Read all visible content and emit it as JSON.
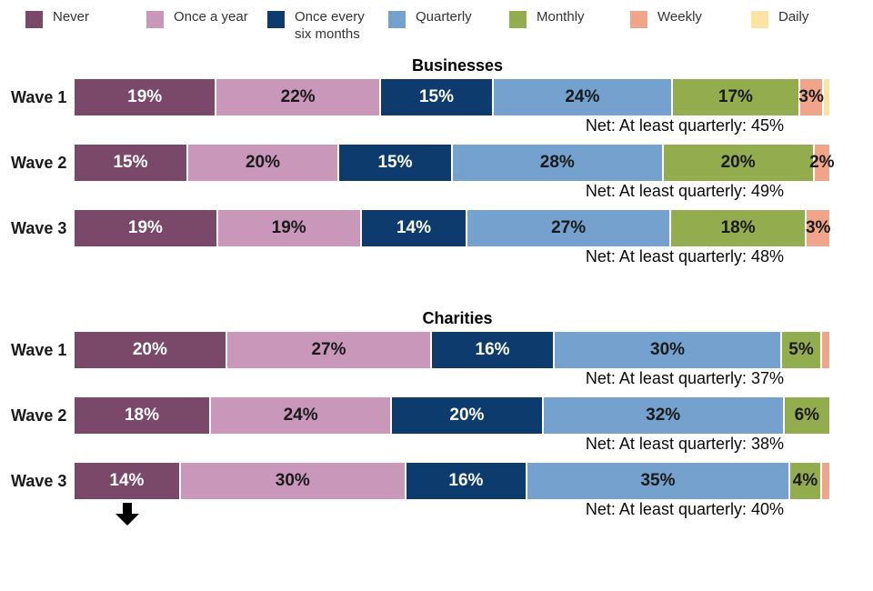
{
  "legend": {
    "items": [
      {
        "label": "Never",
        "color": "#7A4868",
        "text_color": "#ffffff"
      },
      {
        "label": "Once a year",
        "color": "#C997BA",
        "text_color": "#1a1a1a"
      },
      {
        "label": "Once every six months",
        "color": "#0E3B6E",
        "text_color": "#ffffff"
      },
      {
        "label": "Quarterly",
        "color": "#74A1CE",
        "text_color": "#1a1a1a"
      },
      {
        "label": "Monthly",
        "color": "#93AC4E",
        "text_color": "#1a1a1a"
      },
      {
        "label": "Weekly",
        "color": "#F0A489",
        "text_color": "#1a1a1a"
      },
      {
        "label": "Daily",
        "color": "#FBE3A3",
        "text_color": "#1a1a1a"
      }
    ]
  },
  "chart_data": [
    {
      "type": "bar",
      "stacked": true,
      "orientation": "horizontal",
      "unit": "%",
      "title": "Businesses",
      "categories": [
        "Wave 1",
        "Wave 2",
        "Wave 3"
      ],
      "rows": [
        {
          "category": "Wave 1",
          "segments": [
            {
              "series": "Never",
              "value": 19,
              "label": "19%"
            },
            {
              "series": "Once a year",
              "value": 22,
              "label": "22%"
            },
            {
              "series": "Once every six months",
              "value": 15,
              "label": "15%"
            },
            {
              "series": "Quarterly",
              "value": 24,
              "label": "24%"
            },
            {
              "series": "Monthly",
              "value": 17,
              "label": "17%"
            },
            {
              "series": "Weekly",
              "value": 3,
              "label": "3%"
            },
            {
              "series": "Daily",
              "value": 0.7,
              "label": ""
            }
          ],
          "net": "Net: At least quarterly: 45%"
        },
        {
          "category": "Wave 2",
          "segments": [
            {
              "series": "Never",
              "value": 15,
              "label": "15%"
            },
            {
              "series": "Once a year",
              "value": 20,
              "label": "20%"
            },
            {
              "series": "Once every six months",
              "value": 15,
              "label": "15%"
            },
            {
              "series": "Quarterly",
              "value": 28,
              "label": "28%"
            },
            {
              "series": "Monthly",
              "value": 20,
              "label": "20%"
            },
            {
              "series": "Weekly",
              "value": 2,
              "label": "2%"
            }
          ],
          "net": "Net: At least quarterly: 49%"
        },
        {
          "category": "Wave 3",
          "segments": [
            {
              "series": "Never",
              "value": 19,
              "label": "19%"
            },
            {
              "series": "Once a year",
              "value": 19,
              "label": "19%"
            },
            {
              "series": "Once every six months",
              "value": 14,
              "label": "14%"
            },
            {
              "series": "Quarterly",
              "value": 27,
              "label": "27%"
            },
            {
              "series": "Monthly",
              "value": 18,
              "label": "18%"
            },
            {
              "series": "Weekly",
              "value": 3,
              "label": "3%"
            }
          ],
          "net": "Net: At least quarterly: 48%"
        }
      ]
    },
    {
      "type": "bar",
      "stacked": true,
      "orientation": "horizontal",
      "unit": "%",
      "title": "Charities",
      "categories": [
        "Wave 1",
        "Wave 2",
        "Wave 3"
      ],
      "rows": [
        {
          "category": "Wave 1",
          "segments": [
            {
              "series": "Never",
              "value": 20,
              "label": "20%"
            },
            {
              "series": "Once a year",
              "value": 27,
              "label": "27%"
            },
            {
              "series": "Once every six months",
              "value": 16,
              "label": "16%"
            },
            {
              "series": "Quarterly",
              "value": 30,
              "label": "30%"
            },
            {
              "series": "Monthly",
              "value": 5,
              "label": "5%"
            },
            {
              "series": "Weekly",
              "value": 1,
              "label": ""
            }
          ],
          "net": "Net: At least quarterly: 37%"
        },
        {
          "category": "Wave 2",
          "segments": [
            {
              "series": "Never",
              "value": 18,
              "label": "18%"
            },
            {
              "series": "Once a year",
              "value": 24,
              "label": "24%"
            },
            {
              "series": "Once every six months",
              "value": 20,
              "label": "20%"
            },
            {
              "series": "Quarterly",
              "value": 32,
              "label": "32%"
            },
            {
              "series": "Monthly",
              "value": 6,
              "label": "6%"
            }
          ],
          "net": "Net: At least quarterly: 38%"
        },
        {
          "category": "Wave 3",
          "segments": [
            {
              "series": "Never",
              "value": 14,
              "label": "14%"
            },
            {
              "series": "Once a year",
              "value": 30,
              "label": "30%"
            },
            {
              "series": "Once every six months",
              "value": 16,
              "label": "16%"
            },
            {
              "series": "Quarterly",
              "value": 35,
              "label": "35%"
            },
            {
              "series": "Monthly",
              "value": 4,
              "label": "4%"
            },
            {
              "series": "Weekly",
              "value": 1,
              "label": ""
            }
          ],
          "net": "Net: At least quarterly: 40%",
          "arrow": true
        }
      ]
    }
  ]
}
